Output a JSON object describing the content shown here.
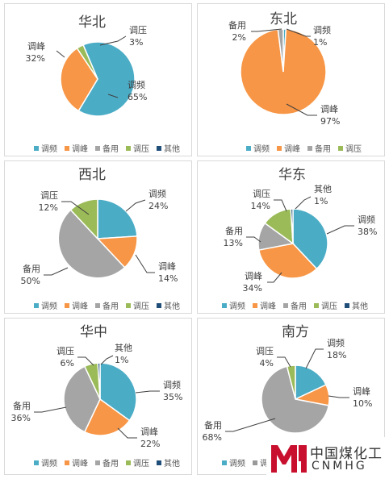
{
  "colors": {
    "调频": "#4bacc6",
    "调峰": "#f79646",
    "备用": "#a5a5a5",
    "调压": "#9bbb59",
    "其他": "#1f4e79"
  },
  "chart_data": [
    {
      "type": "pie",
      "title": "华北",
      "slices": [
        {
          "name": "调频",
          "value": 65,
          "label": "65%"
        },
        {
          "name": "调峰",
          "value": 32,
          "label": "32%"
        },
        {
          "name": "调压",
          "value": 3,
          "label": "3%"
        }
      ],
      "legend": [
        "调频",
        "调峰",
        "备用",
        "调压",
        "其他"
      ],
      "legend_position": "bottom"
    },
    {
      "type": "pie",
      "title": "东北",
      "slices": [
        {
          "name": "调频",
          "value": 1,
          "label": "1%"
        },
        {
          "name": "调峰",
          "value": 97,
          "label": "97%"
        },
        {
          "name": "备用",
          "value": 2,
          "label": "2%"
        }
      ],
      "legend": [
        "调频",
        "调峰",
        "备用",
        "调压"
      ],
      "legend_position": "bottom"
    },
    {
      "type": "pie",
      "title": "西北",
      "slices": [
        {
          "name": "调频",
          "value": 24,
          "label": "24%"
        },
        {
          "name": "调峰",
          "value": 14,
          "label": "14%"
        },
        {
          "name": "备用",
          "value": 50,
          "label": "50%"
        },
        {
          "name": "调压",
          "value": 12,
          "label": "12%"
        }
      ],
      "legend": [
        "调频",
        "调峰",
        "备用",
        "调压",
        "其他"
      ],
      "legend_position": "bottom"
    },
    {
      "type": "pie",
      "title": "华东",
      "slices": [
        {
          "name": "调频",
          "value": 38,
          "label": "38%"
        },
        {
          "name": "调峰",
          "value": 34,
          "label": "34%"
        },
        {
          "name": "备用",
          "value": 13,
          "label": "13%"
        },
        {
          "name": "调压",
          "value": 14,
          "label": "14%"
        },
        {
          "name": "其他",
          "value": 1,
          "label": "1%"
        }
      ],
      "legend": [
        "调频",
        "调峰",
        "备用",
        "调压",
        "其他"
      ],
      "legend_position": "bottom"
    },
    {
      "type": "pie",
      "title": "华中",
      "slices": [
        {
          "name": "调频",
          "value": 35,
          "label": "35%"
        },
        {
          "name": "调峰",
          "value": 22,
          "label": "22%"
        },
        {
          "name": "备用",
          "value": 36,
          "label": "36%"
        },
        {
          "name": "调压",
          "value": 6,
          "label": "6%"
        },
        {
          "name": "其他",
          "value": 1,
          "label": "1%"
        }
      ],
      "legend": [
        "调频",
        "调峰",
        "备用",
        "调压",
        "其他"
      ],
      "legend_position": "bottom"
    },
    {
      "type": "pie",
      "title": "南方",
      "slices": [
        {
          "name": "调频",
          "value": 18,
          "label": "18%"
        },
        {
          "name": "调峰",
          "value": 10,
          "label": "10%"
        },
        {
          "name": "备用",
          "value": 68,
          "label": "68%"
        },
        {
          "name": "调压",
          "value": 4,
          "label": "4%"
        }
      ],
      "legend": [
        "调频",
        "调"
      ],
      "legend_position": "bottom"
    }
  ],
  "watermark": {
    "logo": "mh-logo-icon",
    "cn": "中国煤化工",
    "en": "CNMHG"
  }
}
